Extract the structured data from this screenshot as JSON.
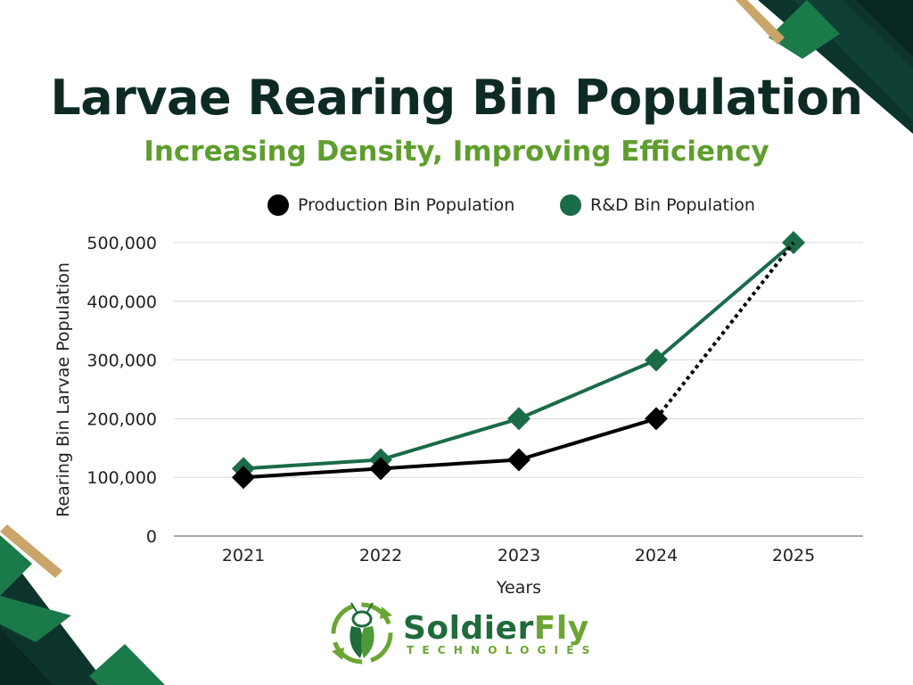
{
  "title": "Larvae Rearing Bin Population",
  "subtitle": "Increasing Density, Improving Efficiency",
  "colors": {
    "title": "#0d2b24",
    "subtitle": "#5f9e2e",
    "production": "#000000",
    "rnd": "#1a6b47",
    "dark_accent": "#0f3b32",
    "green_accent": "#1b7a4a",
    "gold_accent": "#c9a56a"
  },
  "chart_data": {
    "type": "line",
    "categories": [
      "2021",
      "2022",
      "2023",
      "2024",
      "2025"
    ],
    "series": [
      {
        "name": "Production Bin Population",
        "color": "#000000",
        "values": [
          100000,
          115000,
          130000,
          200000,
          500000
        ],
        "projected_from_index": 3,
        "marker": "diamond"
      },
      {
        "name": "R&D Bin Population",
        "color": "#1a6b47",
        "values": [
          115000,
          130000,
          200000,
          300000,
          500000
        ],
        "marker": "diamond"
      }
    ],
    "xlabel": "Years",
    "ylabel": "Rearing Bin Larvae Population",
    "ylim": [
      0,
      500000
    ],
    "yticks": [
      "0",
      "100,000",
      "200,000",
      "300,000",
      "400,000",
      "500,000"
    ],
    "grid": true,
    "legend": "top"
  },
  "logo": {
    "word_1": "Soldier",
    "word_2": "Fly",
    "tagline": "TECHNOLOGIES",
    "icon": "larva-recycle-icon"
  }
}
